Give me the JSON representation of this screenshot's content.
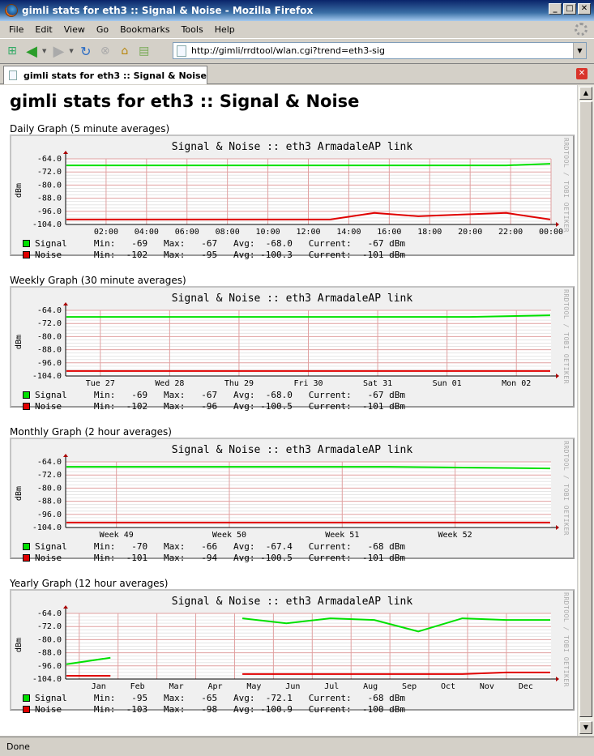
{
  "window": {
    "title": "gimli stats for eth3 :: Signal & Noise - Mozilla Firefox"
  },
  "menu": [
    "File",
    "Edit",
    "View",
    "Go",
    "Bookmarks",
    "Tools",
    "Help"
  ],
  "url": "http://gimli/rrdtool/wlan.cgi?trend=eth3-sig",
  "tab": {
    "label": "gimli stats for eth3 :: Signal & Noise"
  },
  "status": "Done",
  "page": {
    "heading": "gimli stats for eth3 :: Signal & Noise"
  },
  "colors": {
    "signal": "#00e000",
    "noise": "#e00000"
  },
  "graph_common": {
    "title": "Signal & Noise :: eth3 ArmadaleAP link",
    "watermark": "RRDTOOL / TOBI OETIKER",
    "ylabel": "dBm",
    "yticks": [
      "-64.0",
      "-72.0",
      "-80.0",
      "-88.0",
      "-96.0",
      "-104.0"
    ]
  },
  "graphs": [
    {
      "label": "Daily Graph (5 minute averages)",
      "xticks": [
        "02:00",
        "04:00",
        "06:00",
        "08:00",
        "10:00",
        "12:00",
        "14:00",
        "16:00",
        "18:00",
        "20:00",
        "22:00",
        "00:00"
      ],
      "signal_legend": "Signal     Min:   -69   Max:   -67   Avg:  -68.0   Current:   -67 dBm",
      "noise_legend": "Noise      Min:  -102   Max:   -95   Avg: -100.3   Current:  -101 dBm"
    },
    {
      "label": "Weekly Graph (30 minute averages)",
      "xticks": [
        "Tue 27",
        "Wed 28",
        "Thu 29",
        "Fri 30",
        "Sat 31",
        "Sun 01",
        "Mon 02"
      ],
      "signal_legend": "Signal     Min:   -69   Max:   -67   Avg:  -68.0   Current:   -67 dBm",
      "noise_legend": "Noise      Min:  -102   Max:   -96   Avg: -100.5   Current:  -101 dBm"
    },
    {
      "label": "Monthly Graph (2 hour averages)",
      "xticks": [
        "Week 49",
        "Week 50",
        "Week 51",
        "Week 52"
      ],
      "signal_legend": "Signal     Min:   -70   Max:   -66   Avg:  -67.4   Current:   -68 dBm",
      "noise_legend": "Noise      Min:  -101   Max:   -94   Avg: -100.5   Current:  -101 dBm"
    },
    {
      "label": "Yearly Graph (12 hour averages)",
      "xticks": [
        "Jan",
        "Feb",
        "Mar",
        "Apr",
        "May",
        "Jun",
        "Jul",
        "Aug",
        "Sep",
        "Oct",
        "Nov",
        "Dec"
      ],
      "signal_legend": "Signal     Min:   -95   Max:   -65   Avg:  -72.1   Current:   -68 dBm",
      "noise_legend": "Noise      Min:  -103   Max:   -98   Avg: -100.9   Current:  -100 dBm"
    }
  ],
  "chart_data": [
    {
      "type": "line",
      "title": "Signal & Noise :: eth3 ArmadaleAP link",
      "ylabel": "dBm",
      "ylim": [
        -104,
        -64
      ],
      "x": [
        "02:00",
        "04:00",
        "06:00",
        "08:00",
        "10:00",
        "12:00",
        "14:00",
        "16:00",
        "18:00",
        "20:00",
        "22:00",
        "00:00"
      ],
      "series": [
        {
          "name": "Signal",
          "values": [
            -68,
            -68,
            -68,
            -68,
            -68,
            -68,
            -68,
            -68,
            -68,
            -68,
            -68,
            -67
          ]
        },
        {
          "name": "Noise",
          "values": [
            -101,
            -101,
            -101,
            -101,
            -101,
            -101,
            -101,
            -97,
            -99,
            -98,
            -97,
            -101
          ]
        }
      ]
    },
    {
      "type": "line",
      "title": "Signal & Noise :: eth3 ArmadaleAP link",
      "ylabel": "dBm",
      "ylim": [
        -104,
        -64
      ],
      "x": [
        "Tue 27",
        "Wed 28",
        "Thu 29",
        "Fri 30",
        "Sat 31",
        "Sun 01",
        "Mon 02"
      ],
      "series": [
        {
          "name": "Signal",
          "values": [
            -68,
            -68,
            -68,
            -68,
            -68,
            -68,
            -67
          ]
        },
        {
          "name": "Noise",
          "values": [
            -101,
            -101,
            -101,
            -101,
            -101,
            -101,
            -101
          ]
        }
      ]
    },
    {
      "type": "line",
      "title": "Signal & Noise :: eth3 ArmadaleAP link",
      "ylabel": "dBm",
      "ylim": [
        -104,
        -64
      ],
      "x": [
        "Week 49",
        "Week 50",
        "Week 51",
        "Week 52"
      ],
      "series": [
        {
          "name": "Signal",
          "values": [
            -67,
            -67,
            -67,
            -68
          ]
        },
        {
          "name": "Noise",
          "values": [
            -101,
            -101,
            -101,
            -101
          ]
        }
      ]
    },
    {
      "type": "line",
      "title": "Signal & Noise :: eth3 ArmadaleAP link",
      "ylabel": "dBm",
      "ylim": [
        -104,
        -64
      ],
      "x": [
        "Jan",
        "Feb",
        "Mar",
        "Apr",
        "May",
        "Jun",
        "Jul",
        "Aug",
        "Sep",
        "Oct",
        "Nov",
        "Dec"
      ],
      "series": [
        {
          "name": "Signal",
          "values": [
            -95,
            -91,
            null,
            null,
            -67,
            -70,
            -67,
            -68,
            -75,
            -67,
            -68,
            -68
          ]
        },
        {
          "name": "Noise",
          "values": [
            -102,
            -102,
            null,
            null,
            -101,
            -101,
            -101,
            -101,
            -101,
            -101,
            -100,
            -100
          ]
        }
      ]
    }
  ]
}
